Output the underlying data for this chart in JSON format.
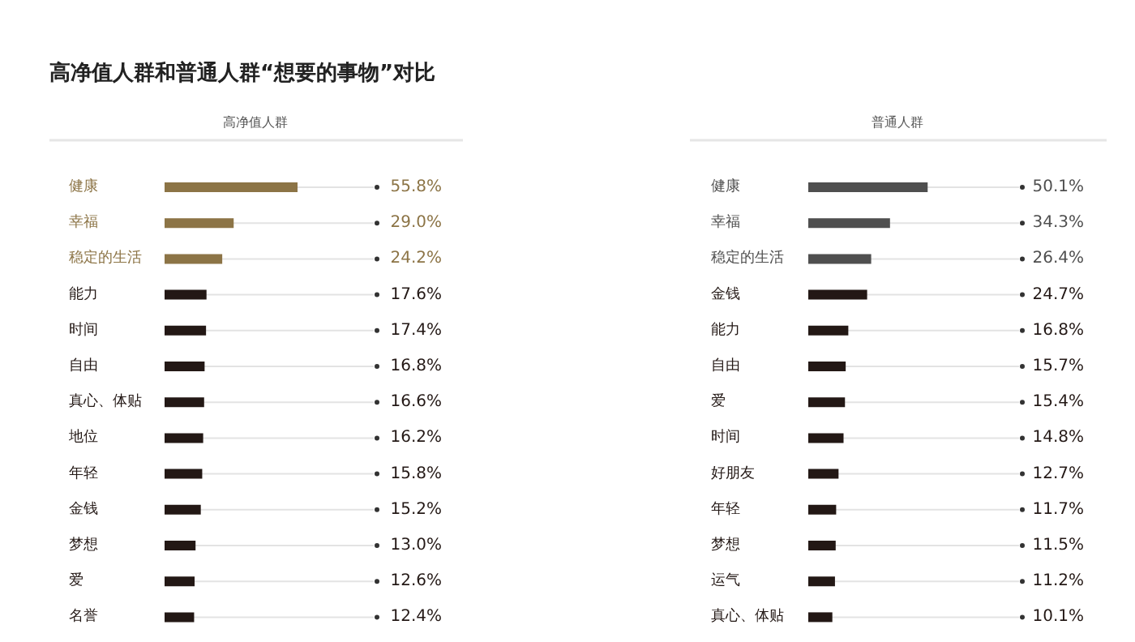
{
  "chart_data": [
    {
      "type": "bar",
      "orientation": "horizontal",
      "title": "高净值人群和普通人群“想要的事物”对比",
      "subtitle": "高净值人群",
      "categories": [
        "健康",
        "幸福",
        "稳定的生活",
        "能力",
        "时间",
        "自由",
        "真心、体贴",
        "地位",
        "年轻",
        "金钱",
        "梦想",
        "爱",
        "名誉"
      ],
      "values": [
        55.8,
        29.0,
        24.2,
        17.6,
        17.4,
        16.8,
        16.6,
        16.2,
        15.8,
        15.2,
        13.0,
        12.6,
        12.4
      ],
      "value_labels": [
        "55.8%",
        "29.0%",
        "24.2%",
        "17.6%",
        "17.4%",
        "16.8%",
        "16.6%",
        "16.2%",
        "15.8%",
        "15.2%",
        "13.0%",
        "12.6%",
        "12.4%"
      ],
      "colors": [
        "#8c7446",
        "#8c7446",
        "#8c7446",
        "#231815",
        "#231815",
        "#231815",
        "#231815",
        "#231815",
        "#231815",
        "#231815",
        "#231815",
        "#231815",
        "#231815"
      ]
    },
    {
      "type": "bar",
      "orientation": "horizontal",
      "subtitle": "普通人群",
      "categories": [
        "健康",
        "幸福",
        "稳定的生活",
        "金钱",
        "能力",
        "自由",
        "爱",
        "时间",
        "好朋友",
        "年轻",
        "梦想",
        "运气",
        "真心、体贴"
      ],
      "values": [
        50.1,
        34.3,
        26.4,
        24.7,
        16.8,
        15.7,
        15.4,
        14.8,
        12.7,
        11.7,
        11.5,
        11.2,
        10.1
      ],
      "value_labels": [
        "50.1%",
        "34.3%",
        "26.4%",
        "24.7%",
        "16.8%",
        "15.7%",
        "15.4%",
        "14.8%",
        "12.7%",
        "11.7%",
        "11.5%",
        "11.2%",
        "10.1%"
      ],
      "colors": [
        "#4f4f4f",
        "#4f4f4f",
        "#4f4f4f",
        "#231815",
        "#231815",
        "#231815",
        "#231815",
        "#231815",
        "#231815",
        "#231815",
        "#231815",
        "#231815",
        "#231815"
      ]
    }
  ]
}
